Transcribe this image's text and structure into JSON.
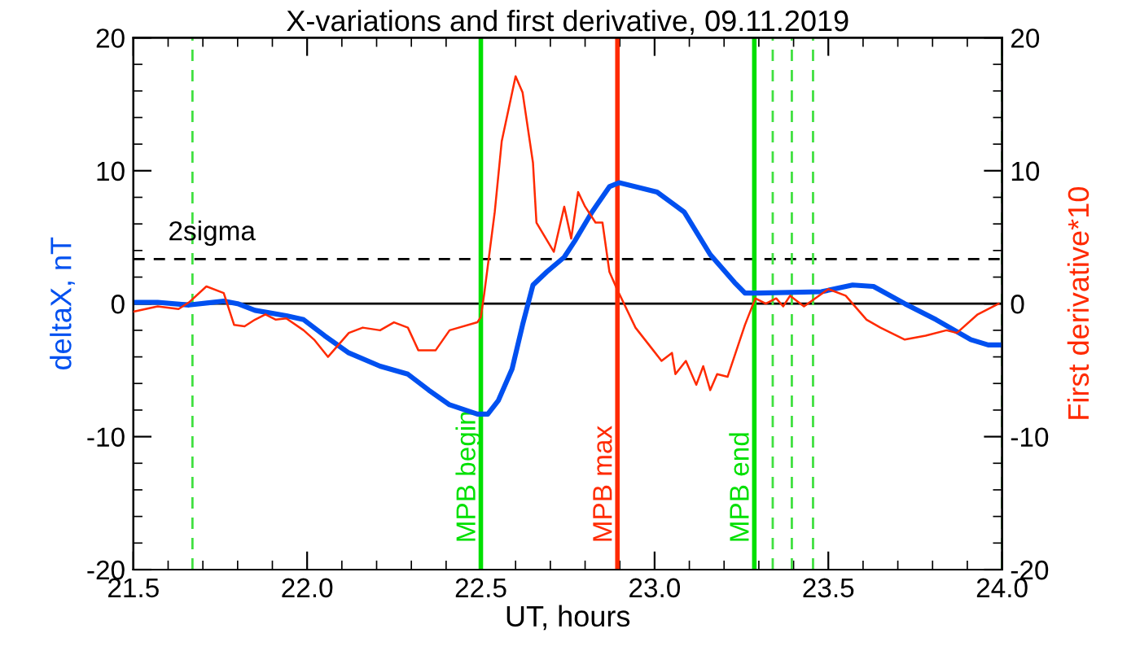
{
  "chart_data": {
    "type": "line",
    "title": "X-variations and first derivative, 09.11.2019",
    "xlabel": "UT, hours",
    "ylabel": "deltaX, nT",
    "y2label": "First derivative*10",
    "xlim": [
      21.5,
      24.0
    ],
    "xticks": [
      {
        "value": 21.5,
        "label": "21.5"
      },
      {
        "value": 22.0,
        "label": "22.0"
      },
      {
        "value": 22.5,
        "label": "22.5"
      },
      {
        "value": 23.0,
        "label": "23.0"
      },
      {
        "value": 23.5,
        "label": "23.5"
      },
      {
        "value": 24.0,
        "label": "24.0"
      }
    ],
    "ylim": [
      -20,
      20
    ],
    "yticks": [
      -20,
      -10,
      0,
      10,
      20
    ],
    "y2lim": [
      -20,
      20
    ],
    "y2ticks": [
      -20,
      -10,
      0,
      10,
      20
    ],
    "grid": false,
    "legend": false,
    "line_style": "solid",
    "marker": "none",
    "series": [
      {
        "color": "#0050f0",
        "axis": "y",
        "x": [
          21.5,
          21.57,
          21.66,
          21.76,
          21.8,
          21.85,
          21.94,
          21.99,
          22.05,
          22.12,
          22.21,
          22.29,
          22.35,
          22.41,
          22.49,
          22.52,
          22.55,
          22.59,
          22.62,
          22.65,
          22.69,
          22.74,
          22.77,
          22.82,
          22.87,
          22.898,
          23.007,
          23.085,
          23.16,
          23.23,
          23.26,
          23.3,
          23.48,
          23.57,
          23.63,
          23.72,
          23.81,
          23.91,
          23.96,
          24.0
        ],
        "values": [
          0.1,
          0.1,
          -0.1,
          0.2,
          0,
          -0.5,
          -0.9,
          -1.2,
          -2.4,
          -3.7,
          -4.7,
          -5.3,
          -6.5,
          -7.6,
          -8.3,
          -8.3,
          -7.3,
          -4.9,
          -1.6,
          1.4,
          2.4,
          3.5,
          4.7,
          6.9,
          8.8,
          9.1,
          8.4,
          6.9,
          3.7,
          1.6,
          0.8,
          0.8,
          0.9,
          1.4,
          1.3,
          0,
          -1.2,
          -2.7,
          -3.1,
          -3.1
        ]
      },
      {
        "color": "#ff2a00",
        "axis": "y2",
        "x": [
          21.5,
          21.57,
          21.63,
          21.66,
          21.71,
          21.76,
          21.79,
          21.82,
          21.85,
          21.88,
          21.91,
          21.94,
          21.99,
          22.02,
          22.06,
          22.12,
          22.16,
          22.21,
          22.25,
          22.29,
          22.32,
          22.37,
          22.41,
          22.49,
          22.5,
          22.51,
          22.54,
          22.56,
          22.6,
          22.62,
          22.65,
          22.66,
          22.71,
          22.74,
          22.76,
          22.78,
          22.8,
          22.83,
          22.85,
          22.87,
          22.89,
          22.945,
          22.99,
          23.02,
          23.05,
          23.06,
          23.09,
          23.12,
          23.14,
          23.16,
          23.18,
          23.21,
          23.26,
          23.29,
          23.32,
          23.35,
          23.37,
          23.39,
          23.43,
          23.5,
          23.55,
          23.61,
          23.65,
          23.72,
          23.78,
          23.84,
          23.87,
          23.93,
          23.99
        ],
        "values": [
          -0.6,
          -0.2,
          -0.4,
          0.1,
          1.3,
          0.8,
          -1.6,
          -1.7,
          -1.2,
          -0.8,
          -1.2,
          -1.1,
          -2.0,
          -2.7,
          -4.0,
          -2.2,
          -1.8,
          -2.0,
          -1.4,
          -1.8,
          -3.5,
          -3.5,
          -2.0,
          -1.4,
          -1.0,
          0.8,
          6.9,
          12.2,
          17.1,
          15.9,
          10.6,
          6.1,
          3.9,
          7.3,
          4.9,
          8.4,
          7.3,
          6.1,
          6.1,
          2.4,
          1.2,
          -1.8,
          -3.3,
          -4.3,
          -3.7,
          -5.3,
          -4.3,
          -6.1,
          -4.7,
          -6.5,
          -5.3,
          -5.5,
          -1.6,
          0.4,
          0,
          0.4,
          -0.2,
          0.6,
          -0.2,
          1.1,
          0.6,
          -1.2,
          -1.8,
          -2.7,
          -2.4,
          -2.0,
          -2.2,
          -0.8,
          0
        ]
      }
    ],
    "ref_lines": [
      {
        "axis": "y",
        "value": 0,
        "color": "#000000",
        "line_style": "solid"
      },
      {
        "axis": "y",
        "value": 3.35,
        "label": "2sigma",
        "color": "#000000",
        "line_style": "dashed"
      },
      {
        "axis": "x",
        "value": 22.5,
        "label": "MPB begin",
        "color": "#00e000",
        "line_style": "solid"
      },
      {
        "axis": "x",
        "value": 22.893,
        "label": "MPB max",
        "color": "#ff2a00",
        "line_style": "solid"
      },
      {
        "axis": "x",
        "value": 23.287,
        "label": "MPB end",
        "color": "#00e000",
        "line_style": "solid"
      },
      {
        "axis": "x",
        "value": 21.67,
        "color": "#40e040",
        "line_style": "dashed"
      },
      {
        "axis": "x",
        "value": 23.34,
        "color": "#40e040",
        "line_style": "dashed"
      },
      {
        "axis": "x",
        "value": 23.395,
        "color": "#40e040",
        "line_style": "dashed"
      },
      {
        "axis": "x",
        "value": 23.456,
        "color": "#40e040",
        "line_style": "dashed"
      },
      {
        "axis": "x",
        "value": 24.0,
        "color": "#40e040",
        "line_style": "dashed"
      }
    ]
  }
}
